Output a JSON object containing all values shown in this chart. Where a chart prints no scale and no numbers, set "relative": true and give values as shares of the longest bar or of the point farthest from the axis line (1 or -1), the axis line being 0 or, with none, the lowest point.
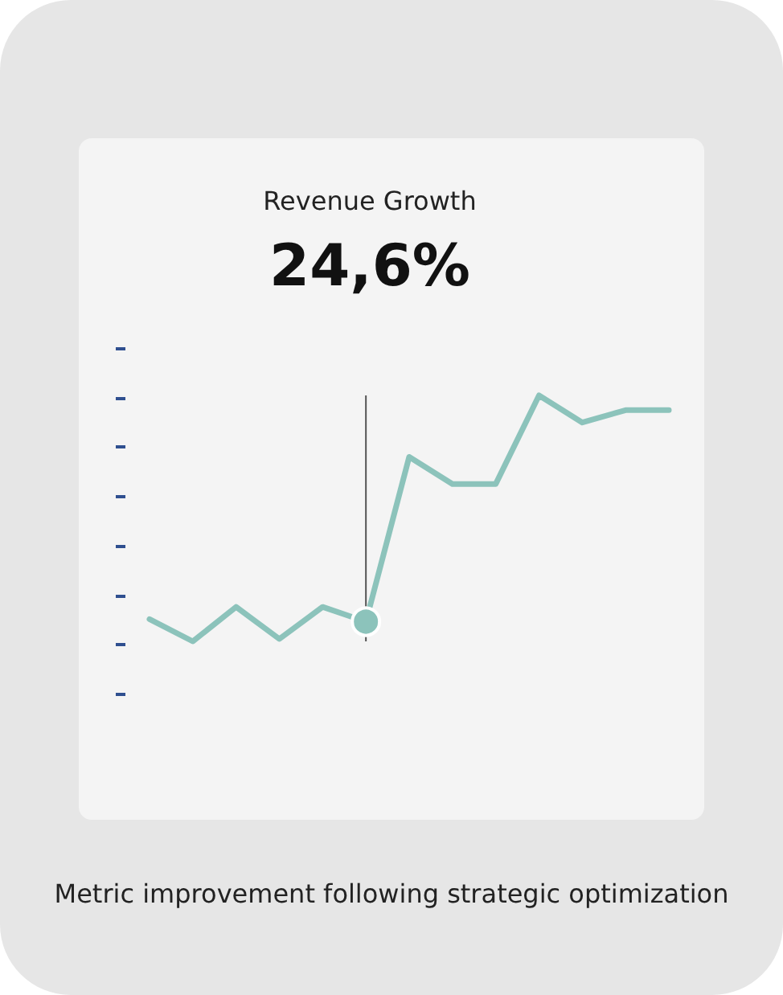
{
  "chart_data": {
    "type": "line",
    "title": "Revenue Growth",
    "subtitle": "24,6%",
    "annotations": [
      "Metric improvement following strategic optimization"
    ],
    "categories": [
      null,
      null,
      null,
      null,
      null,
      null,
      null,
      null,
      null,
      null,
      null,
      null,
      null
    ],
    "values": [
      0.09,
      0,
      0.14,
      0.01,
      0.14,
      0.08,
      0.75,
      0.64,
      0.64,
      1,
      0.89,
      0.94,
      0.94
    ],
    "color": "#8cc3bb",
    "relative": true,
    "marker": "none",
    "line_style": "solid"
  }
}
